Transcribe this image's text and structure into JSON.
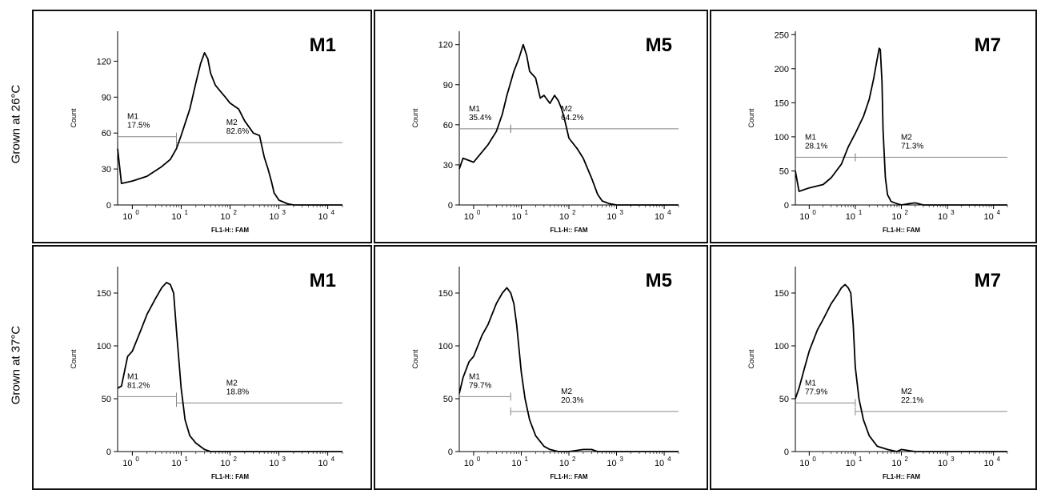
{
  "rows": [
    {
      "label": "Grown at 26°C"
    },
    {
      "label": "Grown at 37°C"
    }
  ],
  "colors": {
    "line": "#000000",
    "gate": "#888888",
    "frame": "#111111"
  },
  "chart_data": [
    {
      "type": "line",
      "title": "M1",
      "xlabel": "FL1-H:: FAM",
      "ylabel": "Count",
      "xscale": "log",
      "xlim": [
        0.5,
        20000
      ],
      "ylim": [
        0,
        145
      ],
      "yticks": [
        0,
        30,
        60,
        90,
        120
      ],
      "xticks": [
        1,
        10,
        100,
        1000,
        10000
      ],
      "xtick_labels": [
        "10",
        "10",
        "10",
        "10",
        "10"
      ],
      "xtick_exponents": [
        "0",
        "1",
        "2",
        "3",
        "4"
      ],
      "gates": [
        {
          "name": "M1",
          "percent": "17.5%",
          "x_start": 0.5,
          "x_end": 8,
          "y": 57
        },
        {
          "name": "M2",
          "percent": "82.6%",
          "x_start": 8,
          "x_end": 20000,
          "y": 52
        }
      ],
      "series": [
        {
          "x": [
            0.5,
            0.6,
            1,
            2,
            4,
            6,
            8,
            10,
            15,
            20,
            25,
            30,
            35,
            40,
            50,
            60,
            80,
            100,
            150,
            200,
            300,
            400,
            500,
            600,
            700,
            800,
            1000,
            1500,
            2000,
            3000,
            20000
          ],
          "y": [
            47,
            18,
            20,
            24,
            32,
            38,
            47,
            58,
            80,
            102,
            118,
            127,
            122,
            110,
            100,
            96,
            90,
            85,
            80,
            70,
            60,
            58,
            40,
            30,
            20,
            10,
            4,
            1,
            0,
            0,
            0
          ]
        }
      ]
    },
    {
      "type": "line",
      "title": "M5",
      "xlabel": "FL1-H:: FAM",
      "ylabel": "Count",
      "xscale": "log",
      "xlim": [
        0.5,
        20000
      ],
      "ylim": [
        0,
        130
      ],
      "yticks": [
        0,
        30,
        60,
        90,
        120
      ],
      "xticks": [
        1,
        10,
        100,
        1000,
        10000
      ],
      "xtick_labels": [
        "10",
        "10",
        "10",
        "10",
        "10"
      ],
      "xtick_exponents": [
        "0",
        "1",
        "2",
        "3",
        "4"
      ],
      "gates": [
        {
          "name": "M1",
          "percent": "35.4%",
          "x_start": 0.5,
          "x_end": 6,
          "y": 57
        },
        {
          "name": "M2",
          "percent": "64.2%",
          "x_start": 6,
          "x_end": 20000,
          "y": 57
        }
      ],
      "series": [
        {
          "x": [
            0.5,
            0.6,
            1,
            2,
            3,
            4,
            5,
            7,
            9,
            11,
            13,
            15,
            20,
            25,
            30,
            40,
            50,
            60,
            70,
            80,
            100,
            150,
            200,
            300,
            400,
            500,
            700,
            1000,
            20000
          ],
          "y": [
            27,
            35,
            32,
            45,
            55,
            68,
            82,
            100,
            110,
            120,
            112,
            100,
            95,
            80,
            82,
            76,
            82,
            78,
            72,
            65,
            50,
            42,
            35,
            20,
            8,
            3,
            1,
            0,
            0
          ]
        }
      ]
    },
    {
      "type": "line",
      "title": "M7",
      "xlabel": "FL1-H:: FAM",
      "ylabel": "Count",
      "xscale": "log",
      "xlim": [
        0.5,
        20000
      ],
      "ylim": [
        0,
        255
      ],
      "yticks": [
        0,
        50,
        100,
        150,
        200,
        250
      ],
      "xticks": [
        1,
        10,
        100,
        1000,
        10000
      ],
      "xtick_labels": [
        "10",
        "10",
        "10",
        "10",
        "10"
      ],
      "xtick_exponents": [
        "0",
        "1",
        "2",
        "3",
        "4"
      ],
      "gates": [
        {
          "name": "M1",
          "percent": "28.1%",
          "x_start": 0.5,
          "x_end": 10,
          "y": 70
        },
        {
          "name": "M2",
          "percent": "71.3%",
          "x_start": 10,
          "x_end": 20000,
          "y": 70
        }
      ],
      "series": [
        {
          "x": [
            0.5,
            0.6,
            1,
            2,
            3,
            5,
            7,
            10,
            15,
            20,
            25,
            30,
            33,
            35,
            38,
            40,
            45,
            50,
            60,
            80,
            100,
            150,
            200,
            300,
            500,
            20000
          ],
          "y": [
            50,
            20,
            25,
            30,
            40,
            60,
            85,
            105,
            130,
            155,
            185,
            215,
            230,
            228,
            180,
            110,
            40,
            15,
            5,
            2,
            0,
            2,
            3,
            0,
            0,
            0
          ]
        }
      ]
    },
    {
      "type": "line",
      "title": "M1",
      "xlabel": "FL1-H:: FAM",
      "ylabel": "Count",
      "xscale": "log",
      "xlim": [
        0.5,
        20000
      ],
      "ylim": [
        0,
        175
      ],
      "yticks": [
        0,
        50,
        100,
        150
      ],
      "xticks": [
        1,
        10,
        100,
        1000,
        10000
      ],
      "xtick_labels": [
        "10",
        "10",
        "10",
        "10",
        "10"
      ],
      "xtick_exponents": [
        "0",
        "1",
        "2",
        "3",
        "4"
      ],
      "gates": [
        {
          "name": "M1",
          "percent": "81.2%",
          "x_start": 0.5,
          "x_end": 8,
          "y": 52
        },
        {
          "name": "M2",
          "percent": "18.8%",
          "x_start": 8,
          "x_end": 20000,
          "y": 46
        }
      ],
      "series": [
        {
          "x": [
            0.5,
            0.6,
            0.8,
            1,
            1.5,
            2,
            3,
            4,
            5,
            6,
            7,
            8,
            10,
            12,
            15,
            20,
            30,
            40,
            50,
            70,
            100,
            200,
            20000
          ],
          "y": [
            60,
            62,
            90,
            95,
            115,
            130,
            145,
            155,
            160,
            158,
            150,
            115,
            60,
            30,
            15,
            8,
            2,
            0,
            0,
            0,
            0,
            0,
            0
          ]
        }
      ]
    },
    {
      "type": "line",
      "title": "M5",
      "xlabel": "FL1-H:: FAM",
      "ylabel": "Count",
      "xscale": "log",
      "xlim": [
        0.5,
        20000
      ],
      "ylim": [
        0,
        175
      ],
      "yticks": [
        0,
        50,
        100,
        150
      ],
      "xticks": [
        1,
        10,
        100,
        1000,
        10000
      ],
      "xtick_labels": [
        "10",
        "10",
        "10",
        "10",
        "10"
      ],
      "xtick_exponents": [
        "0",
        "1",
        "2",
        "3",
        "4"
      ],
      "gates": [
        {
          "name": "M1",
          "percent": "79.7%",
          "x_start": 0.5,
          "x_end": 6,
          "y": 52
        },
        {
          "name": "M2",
          "percent": "20.3%",
          "x_start": 6,
          "x_end": 20000,
          "y": 38
        }
      ],
      "series": [
        {
          "x": [
            0.5,
            0.6,
            0.8,
            1,
            1.5,
            2,
            3,
            4,
            5,
            6,
            7,
            8,
            10,
            12,
            15,
            20,
            30,
            40,
            60,
            100,
            200,
            300,
            400,
            600,
            20000
          ],
          "y": [
            55,
            70,
            85,
            90,
            110,
            120,
            140,
            150,
            155,
            150,
            140,
            120,
            75,
            50,
            30,
            15,
            5,
            2,
            0,
            0,
            2,
            2,
            0,
            0,
            0
          ]
        }
      ]
    },
    {
      "type": "line",
      "title": "M7",
      "xlabel": "FL1-H:: FAM",
      "ylabel": "Count",
      "xscale": "log",
      "xlim": [
        0.5,
        20000
      ],
      "ylim": [
        0,
        175
      ],
      "yticks": [
        0,
        50,
        100,
        150
      ],
      "xticks": [
        1,
        10,
        100,
        1000,
        10000
      ],
      "xtick_labels": [
        "10",
        "10",
        "10",
        "10",
        "10"
      ],
      "xtick_exponents": [
        "0",
        "1",
        "2",
        "3",
        "4"
      ],
      "gates": [
        {
          "name": "M1",
          "percent": "77.9%",
          "x_start": 0.5,
          "x_end": 10,
          "y": 46
        },
        {
          "name": "M2",
          "percent": "22.1%",
          "x_start": 10,
          "x_end": 20000,
          "y": 38
        }
      ],
      "series": [
        {
          "x": [
            0.5,
            0.6,
            0.8,
            1,
            1.5,
            2,
            3,
            4,
            5,
            6,
            7,
            8,
            9,
            10,
            12,
            15,
            20,
            30,
            50,
            80,
            100,
            200,
            20000
          ],
          "y": [
            50,
            60,
            80,
            95,
            115,
            125,
            140,
            148,
            155,
            158,
            155,
            150,
            120,
            80,
            50,
            30,
            15,
            5,
            2,
            0,
            2,
            0,
            0
          ]
        }
      ]
    }
  ]
}
